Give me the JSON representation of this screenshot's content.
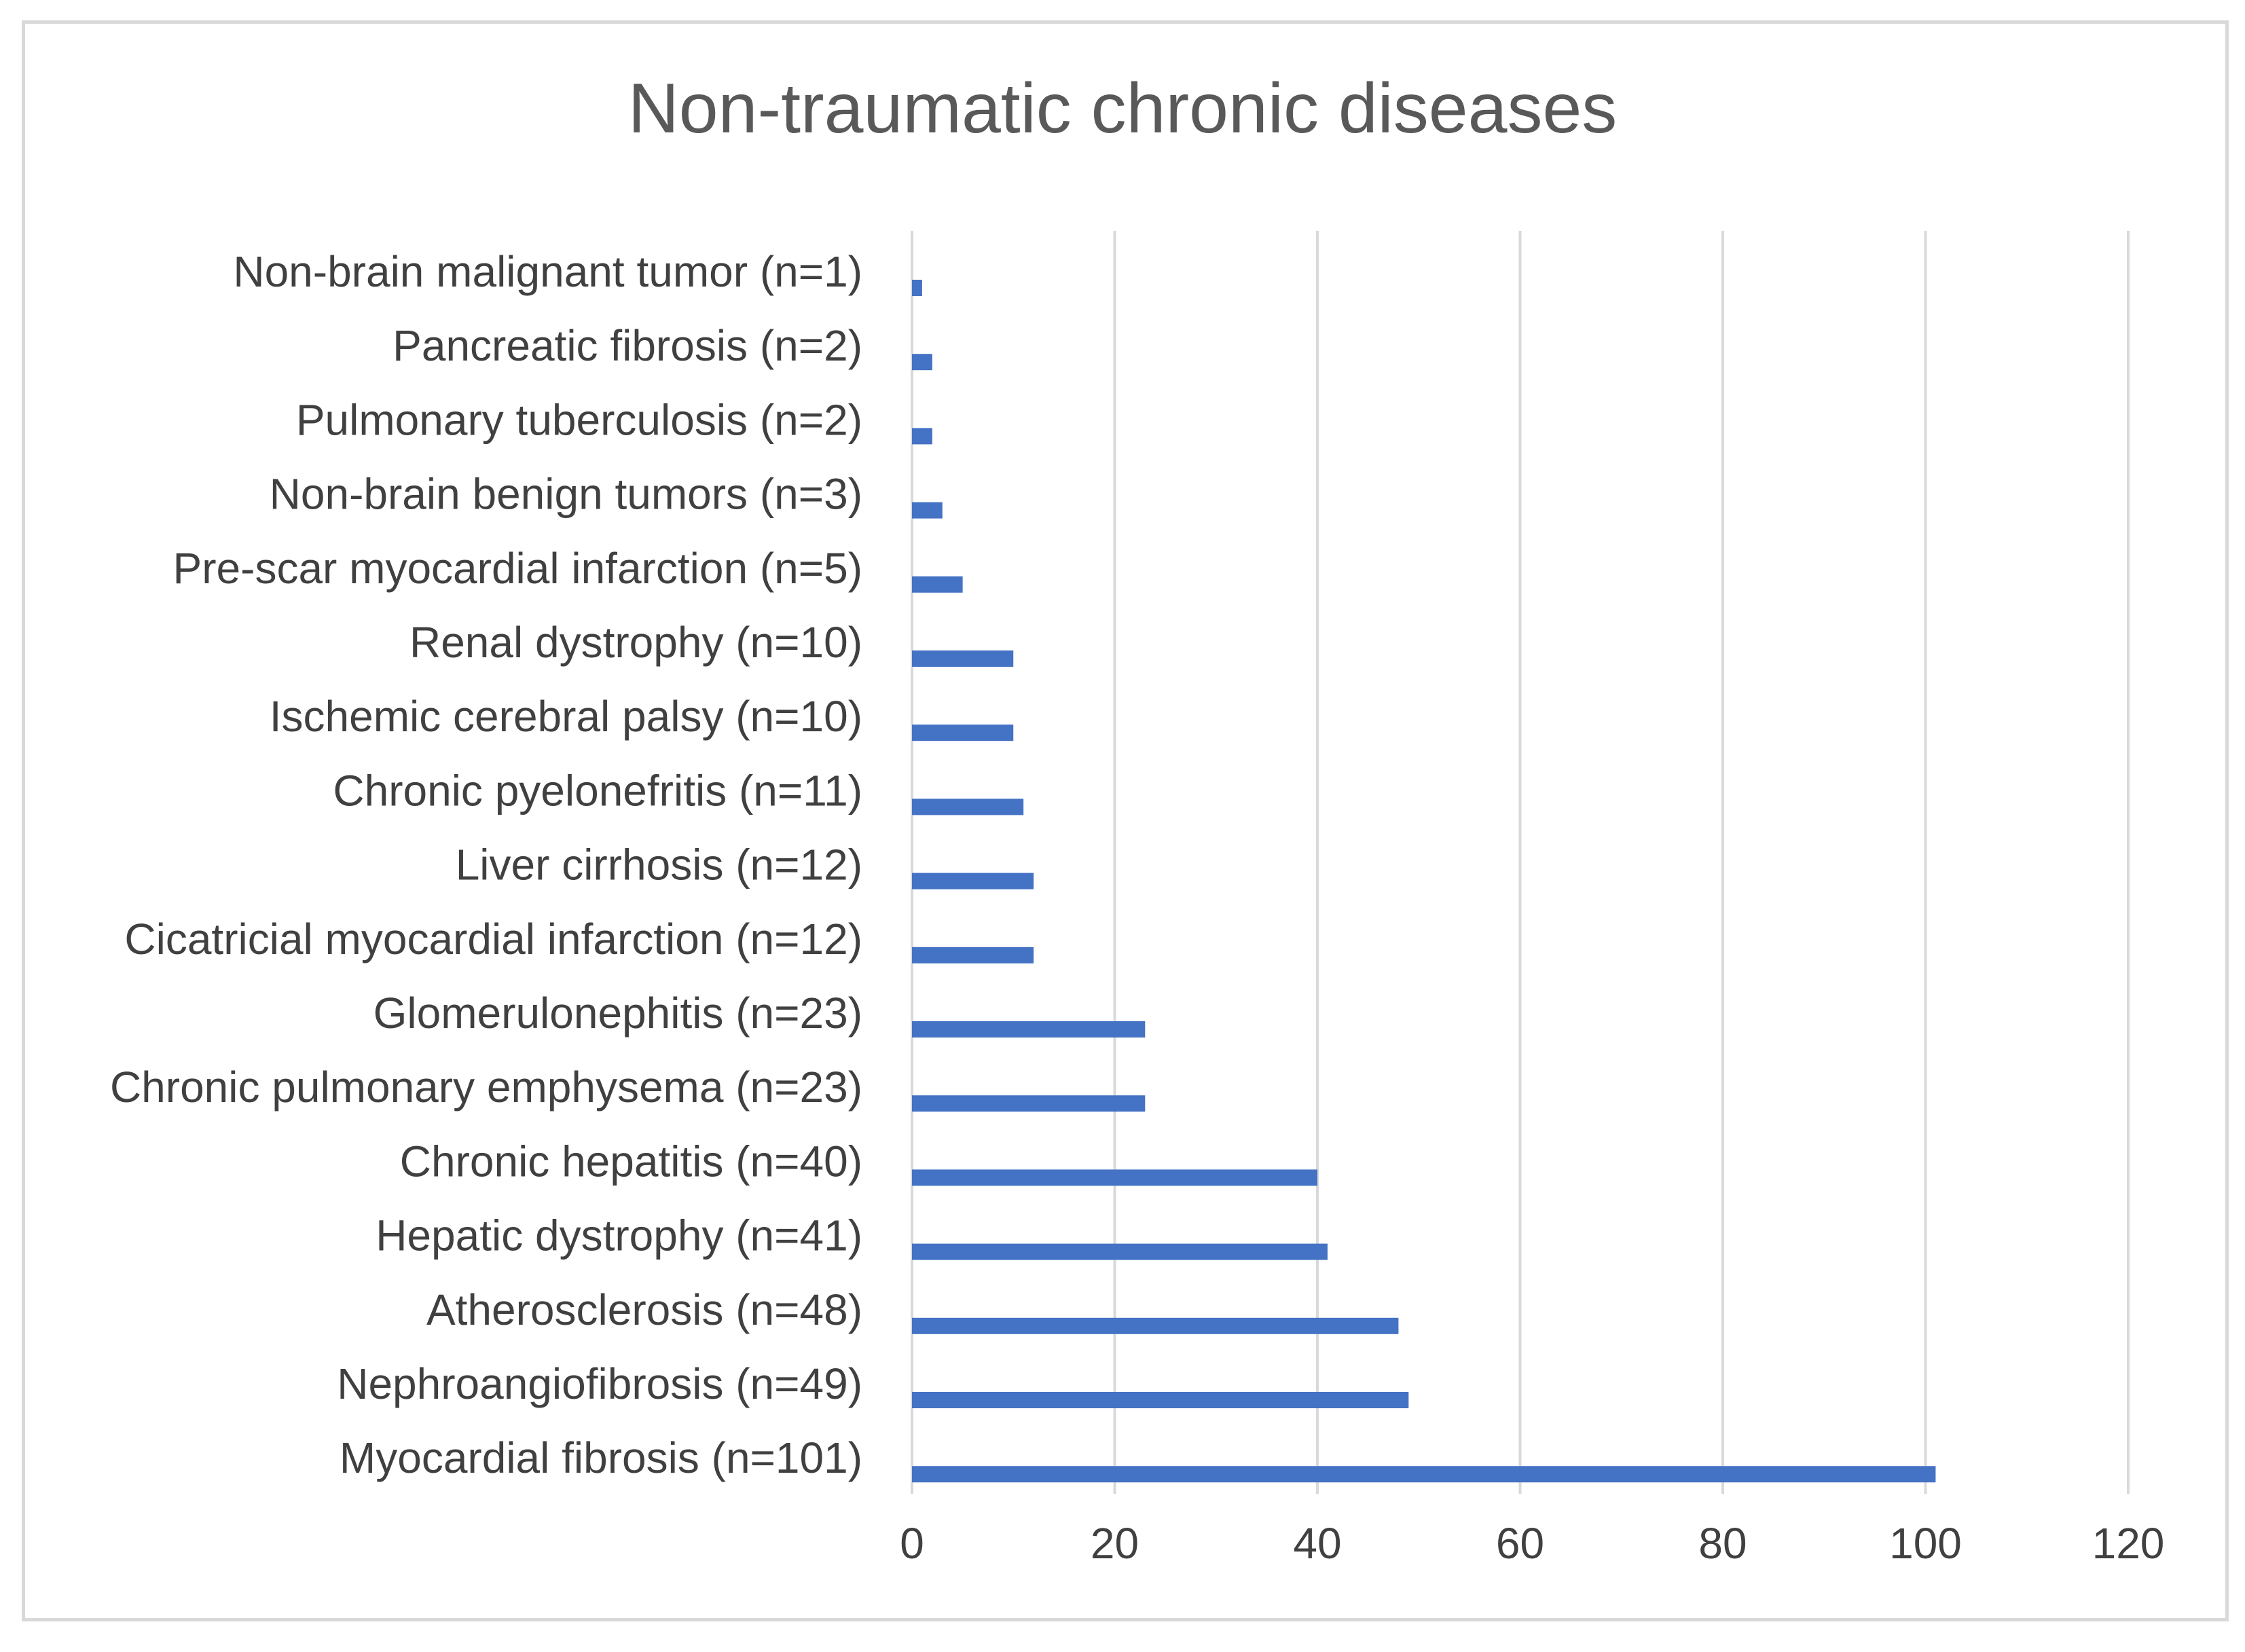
{
  "chart_data": {
    "type": "bar",
    "orientation": "horizontal",
    "title": "Non-traumatic chronic diseases",
    "xlabel": "",
    "ylabel": "",
    "xlim": [
      0,
      120
    ],
    "x_ticks": [
      "0",
      "20",
      "40",
      "60",
      "80",
      "100",
      "120"
    ],
    "grid": "vertical",
    "legend": "none",
    "bar_color": "#4472c4",
    "grid_color": "#d9d9d9",
    "categories": [
      "Non-brain malignant tumor (n=1)",
      "Pancreatic fibrosis (n=2)",
      "Pulmonary tuberculosis (n=2)",
      "Non-brain benign tumors (n=3)",
      "Pre-scar myocardial infarction (n=5)",
      "Renal dystrophy (n=10)",
      "Ischemic cerebral palsy (n=10)",
      "Chronic pyelonefritis (n=11)",
      "Liver cirrhosis (n=12)",
      "Cicatricial myocardial infarction (n=12)",
      "Glomerulonephitis (n=23)",
      "Chronic pulmonary emphysema (n=23)",
      "Chronic hepatitis (n=40)",
      "Hepatic dystrophy (n=41)",
      "Atherosclerosis (n=48)",
      "Nephroangiofibrosis (n=49)",
      "Myocardial fibrosis (n=101)"
    ],
    "values": [
      1,
      2,
      2,
      3,
      5,
      10,
      10,
      11,
      12,
      12,
      23,
      23,
      40,
      41,
      48,
      49,
      101
    ]
  }
}
